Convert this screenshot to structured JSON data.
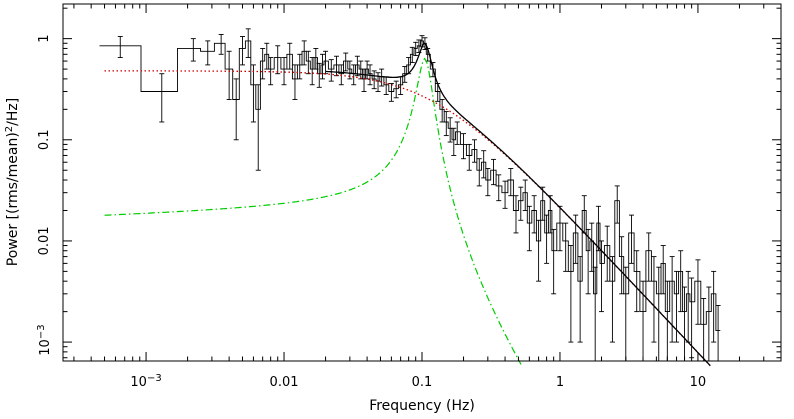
{
  "chart_data": {
    "type": "line",
    "xlabel": "Frequency (Hz)",
    "ylabel_prefix": "Power  [(rms/mean)",
    "ylabel_sup": "2",
    "ylabel_suffix": "/Hz]",
    "x_scale": "log",
    "y_scale": "log",
    "xlim": [
      0.00025,
      40
    ],
    "ylim": [
      0.00065,
      2.2
    ],
    "grid": false,
    "x_ticks": [
      {
        "value": 0.001,
        "base": "10",
        "exp": "−3"
      },
      {
        "value": 0.01,
        "label": "0.01"
      },
      {
        "value": 0.1,
        "label": "0.1"
      },
      {
        "value": 1,
        "label": "1"
      },
      {
        "value": 10,
        "label": "10"
      }
    ],
    "y_ticks": [
      {
        "value": 1,
        "label": "1"
      },
      {
        "value": 0.1,
        "label": "0.1"
      },
      {
        "value": 0.01,
        "label": "0.01"
      },
      {
        "value": 0.001,
        "base": "10",
        "exp": "−3"
      }
    ],
    "series": [
      {
        "kind": "data-steps",
        "color": "#000000",
        "x": [
          0.00065,
          0.0013,
          0.0022,
          0.0028,
          0.0035,
          0.004,
          0.0045,
          0.005,
          0.0055,
          0.006,
          0.0065,
          0.007,
          0.0075,
          0.008,
          0.009,
          0.01,
          0.011,
          0.012,
          0.013,
          0.014,
          0.015,
          0.016,
          0.017,
          0.018,
          0.019,
          0.02,
          0.022,
          0.024,
          0.026,
          0.028,
          0.03,
          0.032,
          0.034,
          0.036,
          0.038,
          0.04,
          0.042,
          0.045,
          0.048,
          0.051,
          0.055,
          0.06,
          0.065,
          0.07,
          0.075,
          0.08,
          0.085,
          0.09,
          0.095,
          0.1,
          0.105,
          0.11,
          0.12,
          0.13,
          0.14,
          0.15,
          0.16,
          0.17,
          0.18,
          0.2,
          0.22,
          0.24,
          0.26,
          0.28,
          0.3,
          0.33,
          0.36,
          0.4,
          0.44,
          0.48,
          0.52,
          0.56,
          0.6,
          0.65,
          0.7,
          0.75,
          0.8,
          0.85,
          0.9,
          1.0,
          1.1,
          1.2,
          1.3,
          1.4,
          1.5,
          1.6,
          1.7,
          1.8,
          1.9,
          2.0,
          2.2,
          2.4,
          2.6,
          2.8,
          3.0,
          3.3,
          3.6,
          4.0,
          4.4,
          4.8,
          5.2,
          5.6,
          6.0,
          6.5,
          7.0,
          7.5,
          8.0,
          8.5,
          9.0,
          10,
          11,
          12,
          13,
          14
        ],
        "y": [
          0.85,
          0.3,
          0.8,
          0.75,
          0.9,
          0.5,
          0.25,
          0.8,
          0.95,
          0.35,
          0.2,
          0.6,
          0.7,
          0.5,
          0.65,
          0.5,
          0.7,
          0.4,
          0.55,
          0.75,
          0.6,
          0.5,
          0.65,
          0.45,
          0.55,
          0.6,
          0.5,
          0.55,
          0.45,
          0.6,
          0.5,
          0.45,
          0.55,
          0.5,
          0.4,
          0.5,
          0.45,
          0.4,
          0.38,
          0.42,
          0.35,
          0.3,
          0.32,
          0.35,
          0.45,
          0.55,
          0.7,
          0.8,
          0.85,
          0.95,
          0.9,
          0.7,
          0.5,
          0.3,
          0.2,
          0.15,
          0.13,
          0.1,
          0.12,
          0.09,
          0.07,
          0.08,
          0.05,
          0.06,
          0.04,
          0.05,
          0.035,
          0.03,
          0.04,
          0.02,
          0.025,
          0.03,
          0.015,
          0.02,
          0.01,
          0.025,
          0.012,
          0.02,
          0.008,
          0.015,
          0.01,
          0.005,
          0.012,
          0.004,
          0.02,
          0.008,
          0.01,
          0.003,
          0.015,
          0.006,
          0.009,
          0.004,
          0.025,
          0.007,
          0.003,
          0.012,
          0.005,
          0.002,
          0.008,
          0.004,
          0.003,
          0.006,
          0.002,
          0.004,
          0.003,
          0.005,
          0.002,
          0.003,
          0.0025,
          0.004,
          0.0015,
          0.002,
          0.003,
          0.0013
        ],
        "err": [
          0.2,
          0.15,
          0.2,
          0.2,
          0.2,
          0.25,
          0.15,
          0.25,
          0.3,
          0.2,
          0.15,
          0.2,
          0.2,
          0.15,
          0.2,
          0.15,
          0.2,
          0.15,
          0.15,
          0.2,
          0.15,
          0.15,
          0.15,
          0.12,
          0.15,
          0.15,
          0.12,
          0.12,
          0.1,
          0.12,
          0.1,
          0.1,
          0.12,
          0.1,
          0.1,
          0.1,
          0.1,
          0.08,
          0.08,
          0.08,
          0.07,
          0.06,
          0.06,
          0.07,
          0.08,
          0.1,
          0.12,
          0.12,
          0.12,
          0.12,
          0.12,
          0.1,
          0.08,
          0.06,
          0.05,
          0.04,
          0.035,
          0.03,
          0.03,
          0.025,
          0.02,
          0.02,
          0.015,
          0.018,
          0.012,
          0.014,
          0.01,
          0.009,
          0.012,
          0.008,
          0.009,
          0.01,
          0.007,
          0.008,
          0.006,
          0.009,
          0.006,
          0.008,
          0.005,
          0.007,
          0.005,
          0.004,
          0.006,
          0.003,
          0.008,
          0.005,
          0.005,
          0.0025,
          0.007,
          0.004,
          0.005,
          0.003,
          0.01,
          0.004,
          0.0025,
          0.006,
          0.003,
          0.002,
          0.004,
          0.003,
          0.0025,
          0.003,
          0.002,
          0.003,
          0.002,
          0.003,
          0.0015,
          0.002,
          0.0018,
          0.0025,
          0.0012,
          0.0015,
          0.002,
          0.001
        ]
      },
      {
        "kind": "model-total",
        "color": "#000000",
        "components": [
          "broadband",
          "qpo"
        ]
      },
      {
        "kind": "model-broadband",
        "color": "#cc0000",
        "dash": "1.5,2.5",
        "norm": 0.48,
        "break": 0.12,
        "slope": 1.45
      },
      {
        "kind": "model-qpo",
        "color": "#00cc00",
        "dash": "7,3,1.5,3",
        "peak_x": 0.105,
        "peak_y": 0.62,
        "width": 0.013,
        "floor": 0.0085
      }
    ]
  }
}
